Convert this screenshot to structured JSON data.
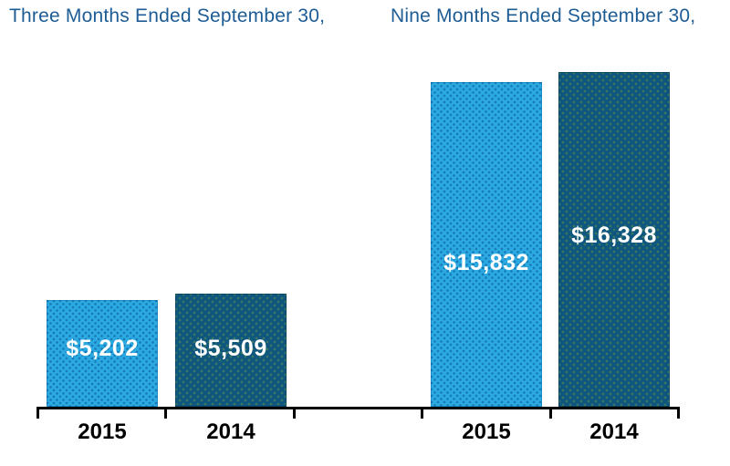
{
  "chart_data": {
    "type": "bar",
    "groups": [
      {
        "title": "Three Months Ended September 30,",
        "categories": [
          "2015",
          "2014"
        ],
        "values": [
          5202,
          5509
        ],
        "value_labels": [
          "$5,202",
          "$5,509"
        ]
      },
      {
        "title": "Nine Months Ended September 30,",
        "categories": [
          "2015",
          "2014"
        ],
        "values": [
          15832,
          16328
        ],
        "value_labels": [
          "$15,832",
          "$16,328"
        ]
      }
    ],
    "series_colors": {
      "2015": "#2BA9E1",
      "2014": "#0F577E"
    },
    "title_color": "#1E5C94",
    "value_label_color": "#FFFFFF",
    "category_label_color": "#000000",
    "axis_color": "#000000",
    "background_color": "#FFFFFF",
    "ylim": [
      0,
      16328
    ],
    "grid": false,
    "legend": "none",
    "xlabel": "",
    "ylabel": ""
  }
}
